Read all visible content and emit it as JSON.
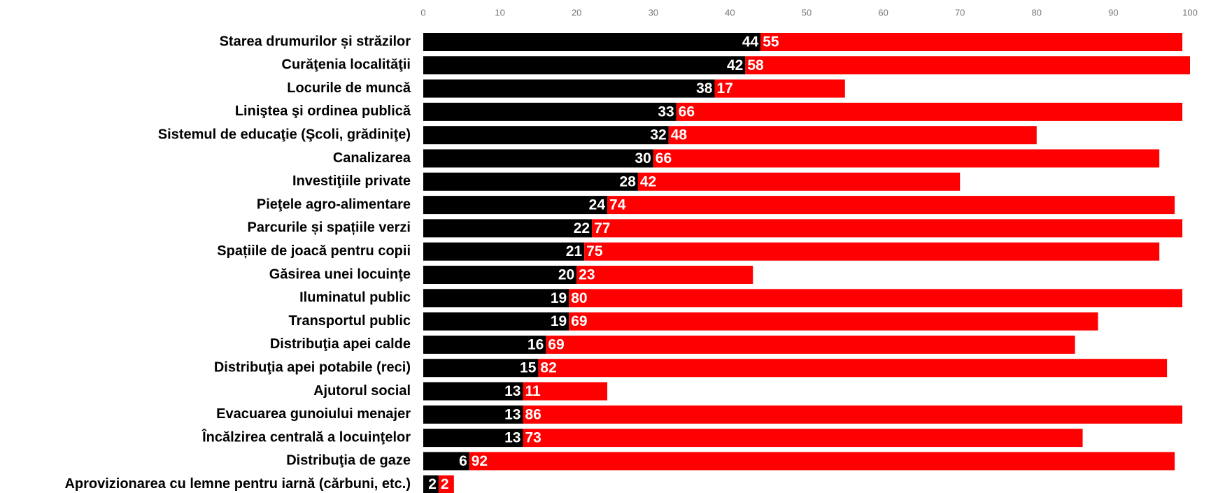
{
  "chart_data": {
    "type": "bar",
    "orientation": "horizontal",
    "stacked": true,
    "categories": [
      "Starea drumurilor și străzilor",
      "Curăţenia localităţii",
      "Locurile de muncă",
      "Liniştea şi ordinea publică",
      "Sistemul de educaţie (Şcoli, grădiniţe)",
      "Canalizarea",
      "Investiţiile private",
      "Pieţele agro-alimentare",
      "Parcurile și spațiile verzi",
      "Spațiile de joacă pentru copii",
      "Găsirea unei locuinţe",
      "Iluminatul public",
      "Transportul public",
      "Distribuţia apei calde",
      "Distribuţia apei potabile (reci)",
      "Ajutorul social",
      "Evacuarea gunoiului menajer",
      "Încălzirea centrală a locuinţelor",
      "Distribuţia de gaze",
      "Aprovizionarea cu lemne pentru iarnă (cărbuni, etc.)"
    ],
    "series": [
      {
        "color": "#000000",
        "values": [
          44,
          42,
          38,
          33,
          32,
          30,
          28,
          24,
          22,
          21,
          20,
          19,
          19,
          16,
          15,
          13,
          13,
          13,
          6,
          2
        ]
      },
      {
        "color": "#ff0000",
        "values": [
          55,
          58,
          17,
          66,
          48,
          66,
          42,
          74,
          77,
          75,
          23,
          80,
          69,
          69,
          82,
          11,
          86,
          73,
          92,
          2
        ]
      }
    ],
    "xlim": [
      0,
      100
    ],
    "xticks": [
      0,
      10,
      20,
      30,
      40,
      50,
      60,
      70,
      80,
      90,
      100
    ]
  }
}
